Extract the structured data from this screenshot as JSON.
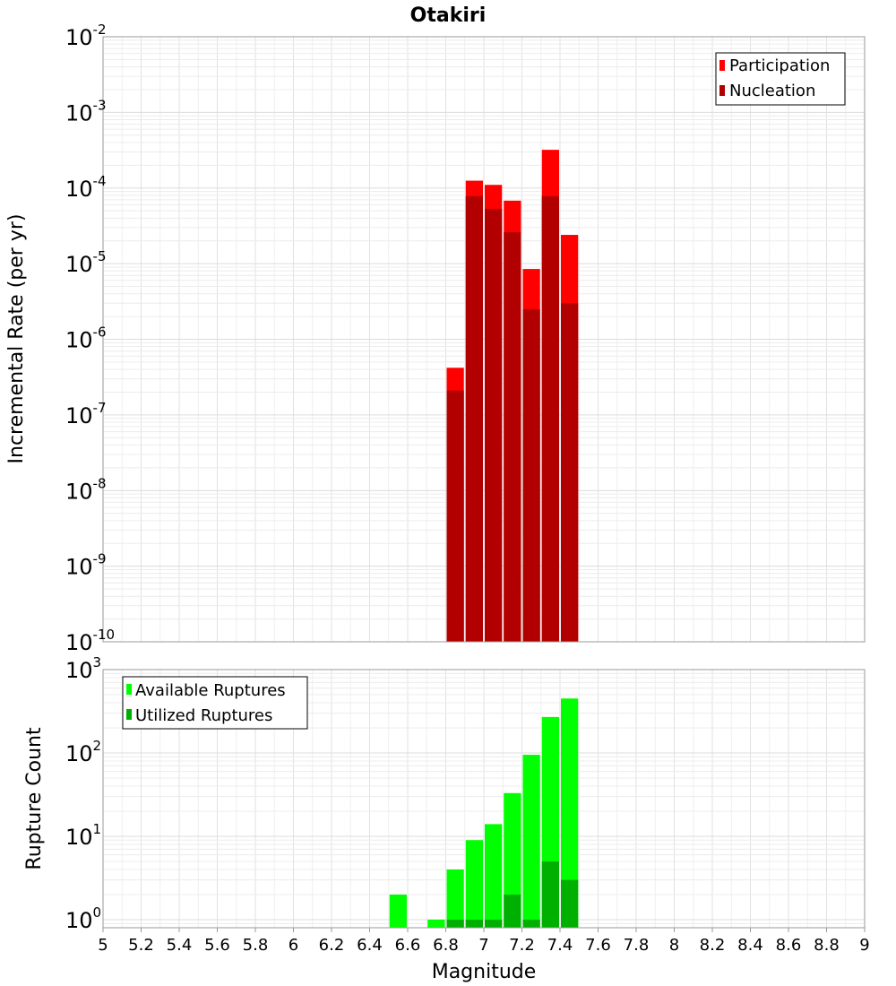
{
  "chart_data": [
    {
      "type": "bar",
      "title": "Otakiri",
      "ylabel": "Incremental Rate (per yr)",
      "xlabel": "",
      "yscale": "log",
      "xlim": [
        5,
        9
      ],
      "ylim": [
        1e-10,
        0.01
      ],
      "bin_width": 0.1,
      "x": [
        6.85,
        6.95,
        7.05,
        7.15,
        7.25,
        7.35,
        7.45
      ],
      "series": [
        {
          "name": "Participation",
          "color": "#ff0000",
          "values": [
            4.2e-07,
            0.000125,
            0.00011,
            6.8e-05,
            8.5e-06,
            0.00032,
            2.4e-05
          ]
        },
        {
          "name": "Nucleation",
          "color": "#b20000",
          "values": [
            2.1e-07,
            7.8e-05,
            5.3e-05,
            2.6e-05,
            2.5e-06,
            7.8e-05,
            3e-06
          ]
        }
      ],
      "legend": "top-right",
      "grid": true
    },
    {
      "type": "bar",
      "title": "",
      "ylabel": "Rupture Count",
      "xlabel": "Magnitude",
      "yscale": "log",
      "xlim": [
        5,
        9
      ],
      "ylim": [
        0.8,
        1000
      ],
      "bin_width": 0.1,
      "x": [
        6.55,
        6.75,
        6.85,
        6.95,
        7.05,
        7.15,
        7.25,
        7.35,
        7.45
      ],
      "series": [
        {
          "name": "Available Ruptures",
          "color": "#00ff00",
          "values": [
            2,
            1,
            4,
            9,
            14,
            33,
            95,
            270,
            450
          ]
        },
        {
          "name": "Utilized Ruptures",
          "color": "#00b000",
          "values": [
            0,
            0,
            1,
            1,
            1,
            2,
            1,
            5,
            3
          ]
        }
      ],
      "x_ticks": [
        "5",
        "5.2",
        "5.4",
        "5.6",
        "5.8",
        "6",
        "6.2",
        "6.4",
        "6.6",
        "6.8",
        "7",
        "7.2",
        "7.4",
        "7.6",
        "7.8",
        "8",
        "8.2",
        "8.4",
        "8.6",
        "8.8",
        "9"
      ],
      "legend": "top-left",
      "grid": true
    }
  ]
}
